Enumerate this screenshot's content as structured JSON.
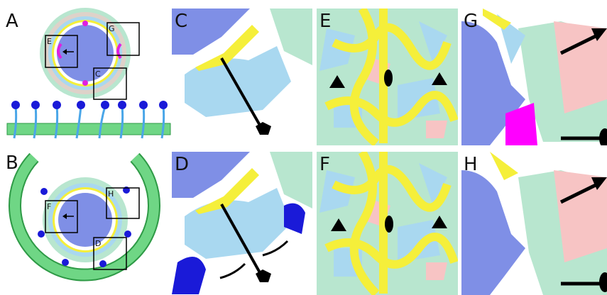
{
  "figure": {
    "panel_labels": [
      "A",
      "B",
      "C",
      "D",
      "E",
      "F",
      "G",
      "H"
    ],
    "inset_labels_a": [
      "E",
      "G",
      "C"
    ],
    "inset_labels_b": [
      "F",
      "H",
      "D"
    ]
  }
}
